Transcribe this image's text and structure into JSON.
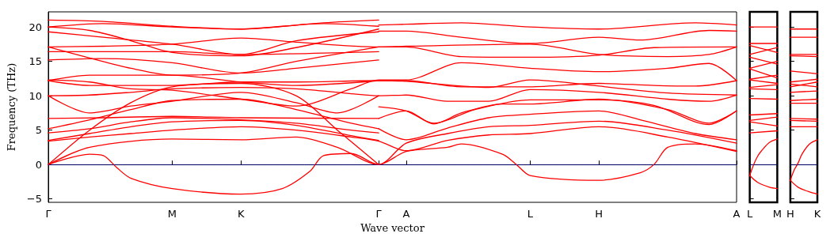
{
  "chart_data": [
    {
      "type": "line",
      "xlabel": "Wave vector",
      "ylabel": "Frequency (THz)",
      "categories": [
        "Γ",
        null,
        null,
        null,
        null,
        null,
        null,
        null,
        null,
        "M",
        null,
        null,
        null,
        null,
        "K",
        null,
        null,
        null,
        null,
        null,
        null,
        null,
        null,
        null,
        "Γ",
        null,
        "A",
        null,
        null,
        null,
        null,
        null,
        null,
        null,
        null,
        "L",
        null,
        null,
        null,
        null,
        "H",
        null,
        null,
        null,
        null,
        null,
        null,
        null,
        null,
        null,
        "A"
      ],
      "ylim": [
        -5.5,
        22.2
      ],
      "yticks": [
        {
          "value": -5,
          "label": "−5"
        },
        0,
        5,
        10,
        15,
        20
      ],
      "grid": false,
      "marker": "none",
      "line_style": "solid",
      "ref_lines": [
        {
          "axis": "y",
          "value": 0,
          "color": "#0000ff",
          "line_style": "dotted"
        }
      ],
      "series": [
        {
          "color": "#ff0000",
          "values": [
            0,
            null,
            null,
            1.5,
            1.3,
            -0.5,
            -2,
            null,
            null,
            -3.5,
            null,
            null,
            null,
            null,
            -4.3,
            null,
            null,
            -3.5,
            null,
            -1,
            1.3,
            null,
            1.6,
            null,
            0,
            null,
            1.9,
            null,
            null,
            2.5,
            3,
            null,
            null,
            1.5,
            0,
            -1.6,
            null,
            null,
            null,
            null,
            -2.3,
            null,
            null,
            -1.2,
            0,
            2.5,
            null,
            3,
            null,
            null,
            2
          ]
        },
        {
          "color": "#ff0000",
          "values": [
            0,
            null,
            null,
            2.5,
            null,
            null,
            null,
            null,
            null,
            3.7,
            null,
            null,
            null,
            null,
            3.6,
            null,
            null,
            null,
            4,
            null,
            null,
            2.5,
            null,
            null,
            0,
            null,
            3.1,
            null,
            null,
            4.5,
            null,
            null,
            5.5,
            null,
            null,
            5.7,
            null,
            null,
            null,
            null,
            6.3,
            null,
            null,
            null,
            null,
            5,
            null,
            null,
            null,
            null,
            3.1
          ]
        },
        {
          "color": "#ff0000",
          "values": [
            0,
            null,
            null,
            5,
            null,
            null,
            9,
            null,
            null,
            11.3,
            null,
            null,
            null,
            null,
            11.8,
            null,
            null,
            null,
            10,
            null,
            null,
            5,
            null,
            null,
            0,
            null,
            null,
            null,
            null,
            null,
            null,
            null,
            null,
            null,
            null,
            null,
            null,
            null,
            null,
            null,
            null,
            null,
            null,
            null,
            null,
            null,
            null,
            null,
            null,
            null,
            null
          ]
        },
        {
          "color": "#ff0000",
          "values": [
            3.4,
            null,
            null,
            4,
            null,
            null,
            4.5,
            null,
            null,
            5,
            null,
            null,
            null,
            null,
            5.5,
            null,
            null,
            null,
            5,
            null,
            null,
            null,
            4,
            null,
            3.4,
            null,
            2,
            null,
            null,
            3.5,
            null,
            null,
            4.3,
            null,
            null,
            4.5,
            null,
            null,
            null,
            null,
            5.5,
            null,
            null,
            null,
            null,
            4,
            null,
            null,
            null,
            null,
            1.9
          ]
        },
        {
          "color": "#ff0000",
          "values": [
            3.5,
            null,
            null,
            4.5,
            null,
            null,
            5.5,
            null,
            null,
            6.2,
            null,
            null,
            null,
            null,
            6.4,
            null,
            null,
            null,
            5.7,
            null,
            null,
            null,
            4.2,
            null,
            3.5,
            null,
            null,
            null,
            null,
            null,
            null,
            null,
            null,
            null,
            null,
            null,
            null,
            null,
            null,
            null,
            null,
            null,
            null,
            null,
            null,
            null,
            null,
            null,
            null,
            null,
            null
          ]
        },
        {
          "color": "#ff0000",
          "values": [
            4.6,
            null,
            null,
            5.2,
            null,
            null,
            6.2,
            null,
            null,
            6.8,
            null,
            null,
            null,
            null,
            6.5,
            null,
            null,
            null,
            6,
            null,
            null,
            null,
            5,
            null,
            4.6,
            null,
            null,
            null,
            null,
            null,
            null,
            null,
            null,
            null,
            null,
            null,
            null,
            null,
            null,
            null,
            null,
            null,
            null,
            null,
            null,
            null,
            null,
            null,
            null,
            null,
            null
          ]
        },
        {
          "color": "#ff0000",
          "values": [
            5.2,
            null,
            null,
            6.5,
            null,
            null,
            8,
            null,
            null,
            9.3,
            null,
            null,
            null,
            null,
            9.5,
            null,
            null,
            null,
            8,
            null,
            null,
            null,
            6,
            null,
            5.2,
            null,
            null,
            null,
            null,
            null,
            null,
            null,
            null,
            null,
            null,
            null,
            null,
            null,
            null,
            null,
            null,
            null,
            null,
            null,
            null,
            null,
            null,
            null,
            null,
            null,
            null
          ]
        },
        {
          "color": "#ff0000",
          "values": [
            6.7,
            null,
            null,
            null,
            6.8,
            null,
            null,
            null,
            null,
            7,
            null,
            null,
            null,
            null,
            6.8,
            null,
            null,
            null,
            null,
            null,
            null,
            null,
            null,
            null,
            6.7,
            null,
            null,
            null,
            null,
            null,
            null,
            null,
            null,
            null,
            null,
            null,
            null,
            null,
            null,
            null,
            null,
            null,
            null,
            null,
            null,
            null,
            null,
            null,
            null,
            null,
            null
          ]
        },
        {
          "color": "#ff0000",
          "values": [
            10,
            null,
            null,
            7.5,
            null,
            null,
            8.5,
            null,
            null,
            9.2,
            null,
            null,
            null,
            null,
            10.5,
            null,
            null,
            null,
            9,
            null,
            null,
            7.5,
            null,
            null,
            10,
            null,
            null,
            null,
            null,
            null,
            null,
            null,
            null,
            null,
            null,
            null,
            null,
            null,
            null,
            null,
            null,
            null,
            null,
            null,
            null,
            null,
            null,
            null,
            null,
            null,
            null
          ]
        },
        {
          "color": "#ff0000",
          "values": [
            10,
            null,
            null,
            10.1,
            null,
            null,
            10.5,
            null,
            null,
            11,
            null,
            null,
            null,
            null,
            11.2,
            null,
            null,
            null,
            11,
            null,
            null,
            null,
            10.3,
            null,
            10,
            null,
            10.1,
            null,
            null,
            9.2,
            null,
            null,
            9.2,
            null,
            null,
            10.9,
            null,
            null,
            null,
            null,
            10.5,
            null,
            null,
            null,
            null,
            9.5,
            null,
            null,
            9.2,
            null,
            10.1
          ]
        },
        {
          "color": "#ff0000",
          "values": [
            12.2,
            null,
            null,
            11.5,
            null,
            null,
            null,
            null,
            null,
            11.5,
            null,
            null,
            null,
            null,
            12,
            null,
            null,
            null,
            12,
            null,
            null,
            null,
            null,
            null,
            12.2,
            null,
            12.1,
            null,
            null,
            null,
            null,
            null,
            11.2,
            null,
            null,
            12.3,
            null,
            null,
            null,
            null,
            11.4,
            null,
            null,
            null,
            null,
            10.4,
            null,
            null,
            null,
            null,
            10.1
          ]
        },
        {
          "color": "#ff0000",
          "values": [
            12.3,
            null,
            null,
            12,
            null,
            null,
            11,
            null,
            null,
            10.8,
            null,
            null,
            null,
            null,
            9.5,
            null,
            null,
            null,
            8.5,
            null,
            null,
            null,
            11,
            null,
            12.3,
            null,
            12.3,
            null,
            null,
            null,
            14.8,
            null,
            null,
            null,
            null,
            14,
            null,
            null,
            null,
            null,
            13.5,
            null,
            null,
            null,
            null,
            14,
            null,
            null,
            14.7,
            null,
            12.2
          ]
        },
        {
          "color": "#ff0000",
          "values": [
            12.2,
            null,
            null,
            13,
            null,
            null,
            null,
            null,
            null,
            13,
            null,
            null,
            null,
            null,
            12,
            null,
            null,
            null,
            11.5,
            null,
            null,
            null,
            null,
            null,
            12.2,
            null,
            null,
            null,
            null,
            null,
            null,
            null,
            null,
            null,
            null,
            null,
            null,
            null,
            null,
            null,
            null,
            null,
            null,
            null,
            null,
            null,
            null,
            null,
            null,
            null,
            null
          ]
        },
        {
          "color": "#ff0000",
          "values": [
            15.2,
            null,
            null,
            null,
            15.4,
            null,
            null,
            null,
            null,
            14.8,
            null,
            null,
            null,
            null,
            13.3,
            null,
            null,
            null,
            14,
            null,
            null,
            null,
            null,
            null,
            15.2,
            null,
            null,
            null,
            null,
            null,
            null,
            null,
            null,
            null,
            null,
            null,
            null,
            null,
            null,
            null,
            null,
            null,
            null,
            null,
            null,
            null,
            null,
            null,
            null,
            null,
            null
          ]
        },
        {
          "color": "#ff0000",
          "values": [
            16.4,
            null,
            null,
            null,
            null,
            null,
            null,
            null,
            null,
            16.4,
            null,
            null,
            null,
            null,
            16,
            null,
            null,
            null,
            null,
            null,
            null,
            null,
            null,
            null,
            16.4,
            null,
            null,
            null,
            null,
            null,
            null,
            null,
            null,
            null,
            null,
            null,
            null,
            null,
            null,
            null,
            null,
            null,
            null,
            null,
            null,
            null,
            null,
            null,
            null,
            null,
            null
          ]
        },
        {
          "color": "#ff0000",
          "values": [
            17.1,
            null,
            null,
            15.5,
            null,
            null,
            14,
            null,
            null,
            13,
            null,
            null,
            null,
            null,
            13.3,
            null,
            null,
            null,
            15,
            null,
            null,
            null,
            null,
            null,
            17.1,
            null,
            null,
            null,
            null,
            null,
            null,
            null,
            null,
            null,
            null,
            null,
            null,
            null,
            null,
            null,
            null,
            null,
            null,
            null,
            null,
            null,
            null,
            null,
            null,
            null,
            null
          ]
        },
        {
          "color": "#ff0000",
          "values": [
            17.1,
            null,
            null,
            null,
            17.2,
            null,
            null,
            null,
            null,
            17.5,
            null,
            null,
            null,
            null,
            18.4,
            null,
            null,
            null,
            17.8,
            null,
            null,
            null,
            null,
            null,
            17.1,
            null,
            17.2,
            null,
            null,
            null,
            null,
            null,
            null,
            null,
            null,
            17.5,
            null,
            null,
            null,
            null,
            16,
            null,
            null,
            null,
            null,
            15.7,
            null,
            null,
            16,
            null,
            17.1
          ]
        },
        {
          "color": "#ff0000",
          "values": [
            19.3,
            null,
            null,
            null,
            18.5,
            null,
            null,
            null,
            null,
            17.5,
            null,
            null,
            null,
            null,
            16,
            null,
            null,
            null,
            18,
            null,
            null,
            null,
            null,
            null,
            19.3,
            null,
            null,
            null,
            null,
            null,
            null,
            null,
            null,
            null,
            null,
            null,
            null,
            null,
            null,
            null,
            null,
            null,
            null,
            null,
            null,
            null,
            null,
            null,
            null,
            null,
            null
          ]
        },
        {
          "color": "#ff0000",
          "values": [
            20,
            null,
            null,
            19.5,
            null,
            null,
            18,
            null,
            null,
            16.3,
            null,
            null,
            null,
            null,
            15.8,
            null,
            null,
            null,
            17,
            null,
            null,
            null,
            null,
            null,
            19.7,
            null,
            null,
            null,
            null,
            null,
            null,
            null,
            null,
            null,
            null,
            null,
            null,
            null,
            null,
            null,
            null,
            null,
            null,
            null,
            null,
            null,
            null,
            null,
            null,
            null,
            null
          ]
        },
        {
          "color": "#ff0000",
          "values": [
            20,
            null,
            null,
            null,
            20.5,
            null,
            null,
            null,
            null,
            20,
            null,
            null,
            null,
            null,
            19.7,
            null,
            null,
            null,
            null,
            null,
            20.5,
            null,
            null,
            null,
            20.1,
            null,
            null,
            null,
            null,
            null,
            null,
            null,
            null,
            null,
            null,
            null,
            null,
            null,
            null,
            null,
            null,
            null,
            null,
            null,
            null,
            null,
            null,
            null,
            null,
            null,
            null
          ]
        },
        {
          "color": "#ff0000",
          "values": [
            21,
            null,
            null,
            null,
            20.8,
            null,
            null,
            null,
            null,
            20.1,
            null,
            null,
            null,
            null,
            19.7,
            null,
            null,
            null,
            null,
            null,
            20.6,
            null,
            null,
            null,
            21,
            null,
            null,
            null,
            null,
            null,
            null,
            null,
            null,
            null,
            null,
            null,
            null,
            null,
            null,
            null,
            null,
            null,
            null,
            null,
            null,
            null,
            null,
            null,
            null,
            null,
            null
          ]
        },
        {
          "color": "#ff0000",
          "values": [
            null,
            null,
            null,
            null,
            null,
            null,
            null,
            null,
            null,
            null,
            null,
            null,
            null,
            null,
            null,
            null,
            null,
            null,
            null,
            null,
            null,
            null,
            null,
            null,
            5.2,
            null,
            3.6,
            null,
            null,
            5.3,
            null,
            null,
            6.8,
            null,
            null,
            7.3,
            null,
            null,
            null,
            null,
            7.8,
            null,
            null,
            6.5,
            null,
            null,
            null,
            4.5,
            null,
            null,
            3.6
          ]
        },
        {
          "color": "#ff0000",
          "values": [
            null,
            null,
            null,
            null,
            null,
            null,
            null,
            null,
            null,
            null,
            null,
            null,
            null,
            null,
            null,
            null,
            null,
            null,
            null,
            null,
            null,
            null,
            null,
            null,
            6.7,
            null,
            7.8,
            null,
            5.9,
            null,
            7.5,
            null,
            null,
            8.8,
            null,
            8.8,
            null,
            null,
            null,
            null,
            9.5,
            null,
            null,
            null,
            null,
            8,
            null,
            null,
            6,
            null,
            7.8
          ]
        },
        {
          "color": "#ff0000",
          "values": [
            null,
            null,
            null,
            null,
            null,
            null,
            null,
            null,
            null,
            null,
            null,
            null,
            null,
            null,
            null,
            null,
            null,
            null,
            null,
            null,
            null,
            null,
            null,
            null,
            8.4,
            null,
            7.8,
            null,
            6,
            null,
            null,
            8,
            null,
            null,
            null,
            9.4,
            null,
            null,
            null,
            null,
            9.4,
            null,
            null,
            null,
            8.6,
            null,
            null,
            null,
            5.8,
            null,
            7.8
          ]
        },
        {
          "color": "#ff0000",
          "values": [
            null,
            null,
            null,
            null,
            null,
            null,
            null,
            null,
            null,
            null,
            null,
            null,
            null,
            null,
            null,
            null,
            null,
            null,
            null,
            null,
            null,
            null,
            null,
            null,
            12.2,
            null,
            12.2,
            null,
            null,
            null,
            11.3,
            null,
            null,
            null,
            null,
            11.3,
            null,
            null,
            null,
            null,
            11.8,
            null,
            null,
            null,
            11.5,
            null,
            null,
            11.4,
            null,
            null,
            12.2
          ]
        },
        {
          "color": "#ff0000",
          "values": [
            null,
            null,
            null,
            null,
            null,
            null,
            null,
            null,
            null,
            null,
            null,
            null,
            null,
            null,
            null,
            null,
            null,
            null,
            null,
            null,
            null,
            null,
            null,
            null,
            17.1,
            null,
            17.1,
            null,
            null,
            null,
            15.7,
            null,
            null,
            null,
            null,
            15.6,
            null,
            null,
            null,
            null,
            15.9,
            null,
            null,
            null,
            17,
            null,
            null,
            null,
            null,
            null,
            17.1
          ]
        },
        {
          "color": "#ff0000",
          "values": [
            null,
            null,
            null,
            null,
            null,
            null,
            null,
            null,
            null,
            null,
            null,
            null,
            null,
            null,
            null,
            null,
            null,
            null,
            null,
            null,
            null,
            null,
            null,
            null,
            19.4,
            null,
            19.4,
            null,
            null,
            null,
            18.5,
            null,
            null,
            null,
            null,
            17.6,
            null,
            null,
            null,
            null,
            18.5,
            null,
            null,
            18.1,
            null,
            null,
            null,
            null,
            19.5,
            null,
            19.4
          ]
        },
        {
          "color": "#ff0000",
          "values": [
            null,
            null,
            null,
            null,
            null,
            null,
            null,
            null,
            null,
            null,
            null,
            null,
            null,
            null,
            null,
            null,
            null,
            null,
            null,
            null,
            null,
            null,
            null,
            null,
            20.3,
            null,
            20.4,
            null,
            null,
            null,
            20.6,
            null,
            null,
            null,
            null,
            20,
            null,
            null,
            null,
            null,
            19.7,
            null,
            null,
            null,
            null,
            null,
            null,
            20.6,
            null,
            null,
            20.3
          ]
        }
      ]
    },
    {
      "type": "line",
      "categories": [
        "L",
        null,
        null,
        null,
        null,
        null,
        null,
        "M"
      ],
      "ylim": [
        -5.5,
        22.2
      ],
      "yticks": [
        -5,
        0,
        5,
        10,
        15,
        20
      ],
      "tick_labels": "x",
      "grid": false,
      "marker": "none",
      "line_style": "solid",
      "ref_lines": [
        {
          "axis": "y",
          "value": 0,
          "color": "#0000ff",
          "line_style": "dotted"
        }
      ],
      "series": [
        {
          "color": "#ff0000",
          "values": [
            -1.6,
            0,
            1.2,
            2,
            null,
            3.2,
            null,
            3.7
          ]
        },
        {
          "color": "#ff0000",
          "values": [
            -1.6,
            null,
            -2.6,
            null,
            null,
            -3.3,
            null,
            -3.5
          ]
        },
        {
          "color": "#ff0000",
          "values": [
            20,
            null,
            null,
            null,
            null,
            null,
            null,
            20
          ]
        },
        {
          "color": "#ff0000",
          "values": [
            17.6,
            null,
            null,
            null,
            null,
            null,
            null,
            17.6
          ]
        },
        {
          "color": "#ff0000",
          "values": [
            17.3,
            null,
            null,
            null,
            null,
            null,
            null,
            16.3
          ]
        },
        {
          "color": "#ff0000",
          "values": [
            16,
            null,
            null,
            null,
            null,
            null,
            null,
            17
          ]
        },
        {
          "color": "#ff0000",
          "values": [
            15.6,
            null,
            null,
            null,
            null,
            null,
            null,
            14.6
          ]
        },
        {
          "color": "#ff0000",
          "values": [
            14,
            null,
            null,
            null,
            null,
            null,
            null,
            15
          ]
        },
        {
          "color": "#ff0000",
          "values": [
            13.9,
            null,
            null,
            null,
            null,
            null,
            null,
            12.6
          ]
        },
        {
          "color": "#ff0000",
          "values": [
            12.4,
            null,
            null,
            null,
            null,
            null,
            null,
            13
          ]
        },
        {
          "color": "#ff0000",
          "values": [
            12.3,
            null,
            null,
            null,
            null,
            null,
            null,
            11.8
          ]
        },
        {
          "color": "#ff0000",
          "values": [
            11.2,
            null,
            null,
            null,
            null,
            null,
            null,
            11.6
          ]
        },
        {
          "color": "#ff0000",
          "values": [
            11,
            null,
            null,
            null,
            null,
            null,
            null,
            10.9
          ]
        },
        {
          "color": "#ff0000",
          "values": [
            9.6,
            null,
            null,
            null,
            null,
            null,
            null,
            9.5
          ]
        },
        {
          "color": "#ff0000",
          "values": [
            7.2,
            null,
            null,
            null,
            null,
            null,
            null,
            7.4
          ]
        },
        {
          "color": "#ff0000",
          "values": [
            6.4,
            null,
            null,
            null,
            null,
            null,
            null,
            6.9
          ]
        },
        {
          "color": "#ff0000",
          "values": [
            6.2,
            null,
            null,
            null,
            null,
            null,
            null,
            5.6
          ]
        },
        {
          "color": "#ff0000",
          "values": [
            4.6,
            null,
            null,
            null,
            null,
            null,
            null,
            4.9
          ]
        }
      ]
    },
    {
      "type": "line",
      "categories": [
        "H",
        null,
        null,
        null,
        null,
        null,
        null,
        "K"
      ],
      "ylim": [
        -5.5,
        22.2
      ],
      "yticks": [
        -5,
        0,
        5,
        10,
        15,
        20
      ],
      "tick_labels": "x",
      "grid": false,
      "marker": "none",
      "line_style": "solid",
      "ref_lines": [
        {
          "axis": "y",
          "value": 0,
          "color": "#0000ff",
          "line_style": "dotted"
        }
      ],
      "series": [
        {
          "color": "#ff0000",
          "values": [
            -2.3,
            -0.8,
            0.2,
            1.5,
            null,
            3,
            null,
            3.6
          ]
        },
        {
          "color": "#ff0000",
          "values": [
            -2.3,
            null,
            -3.3,
            null,
            null,
            -4,
            null,
            -4.3
          ]
        },
        {
          "color": "#ff0000",
          "values": [
            19.7,
            null,
            null,
            null,
            null,
            null,
            null,
            19.7
          ]
        },
        {
          "color": "#ff0000",
          "values": [
            18.5,
            null,
            null,
            null,
            null,
            null,
            null,
            18.5
          ]
        },
        {
          "color": "#ff0000",
          "values": [
            16,
            null,
            null,
            null,
            null,
            null,
            null,
            16
          ]
        },
        {
          "color": "#ff0000",
          "values": [
            15.8,
            null,
            null,
            null,
            null,
            null,
            null,
            15.7
          ]
        },
        {
          "color": "#ff0000",
          "values": [
            13.6,
            null,
            null,
            null,
            null,
            null,
            null,
            13.2
          ]
        },
        {
          "color": "#ff0000",
          "values": [
            12,
            null,
            null,
            null,
            null,
            null,
            null,
            12.4
          ]
        },
        {
          "color": "#ff0000",
          "values": [
            11.7,
            null,
            null,
            null,
            null,
            null,
            null,
            11.3
          ]
        },
        {
          "color": "#ff0000",
          "values": [
            11.3,
            null,
            null,
            null,
            null,
            null,
            null,
            12
          ]
        },
        {
          "color": "#ff0000",
          "values": [
            10.5,
            null,
            null,
            null,
            null,
            null,
            null,
            10.7
          ]
        },
        {
          "color": "#ff0000",
          "values": [
            9.3,
            null,
            null,
            null,
            null,
            null,
            null,
            9.5
          ]
        },
        {
          "color": "#ff0000",
          "values": [
            8.9,
            null,
            null,
            null,
            null,
            null,
            null,
            8.9
          ]
        },
        {
          "color": "#ff0000",
          "values": [
            6.7,
            null,
            null,
            null,
            null,
            null,
            null,
            6.6
          ]
        },
        {
          "color": "#ff0000",
          "values": [
            6.4,
            null,
            null,
            null,
            null,
            null,
            null,
            6.3
          ]
        },
        {
          "color": "#ff0000",
          "values": [
            5.5,
            null,
            null,
            null,
            null,
            null,
            null,
            5.5
          ]
        }
      ]
    }
  ]
}
